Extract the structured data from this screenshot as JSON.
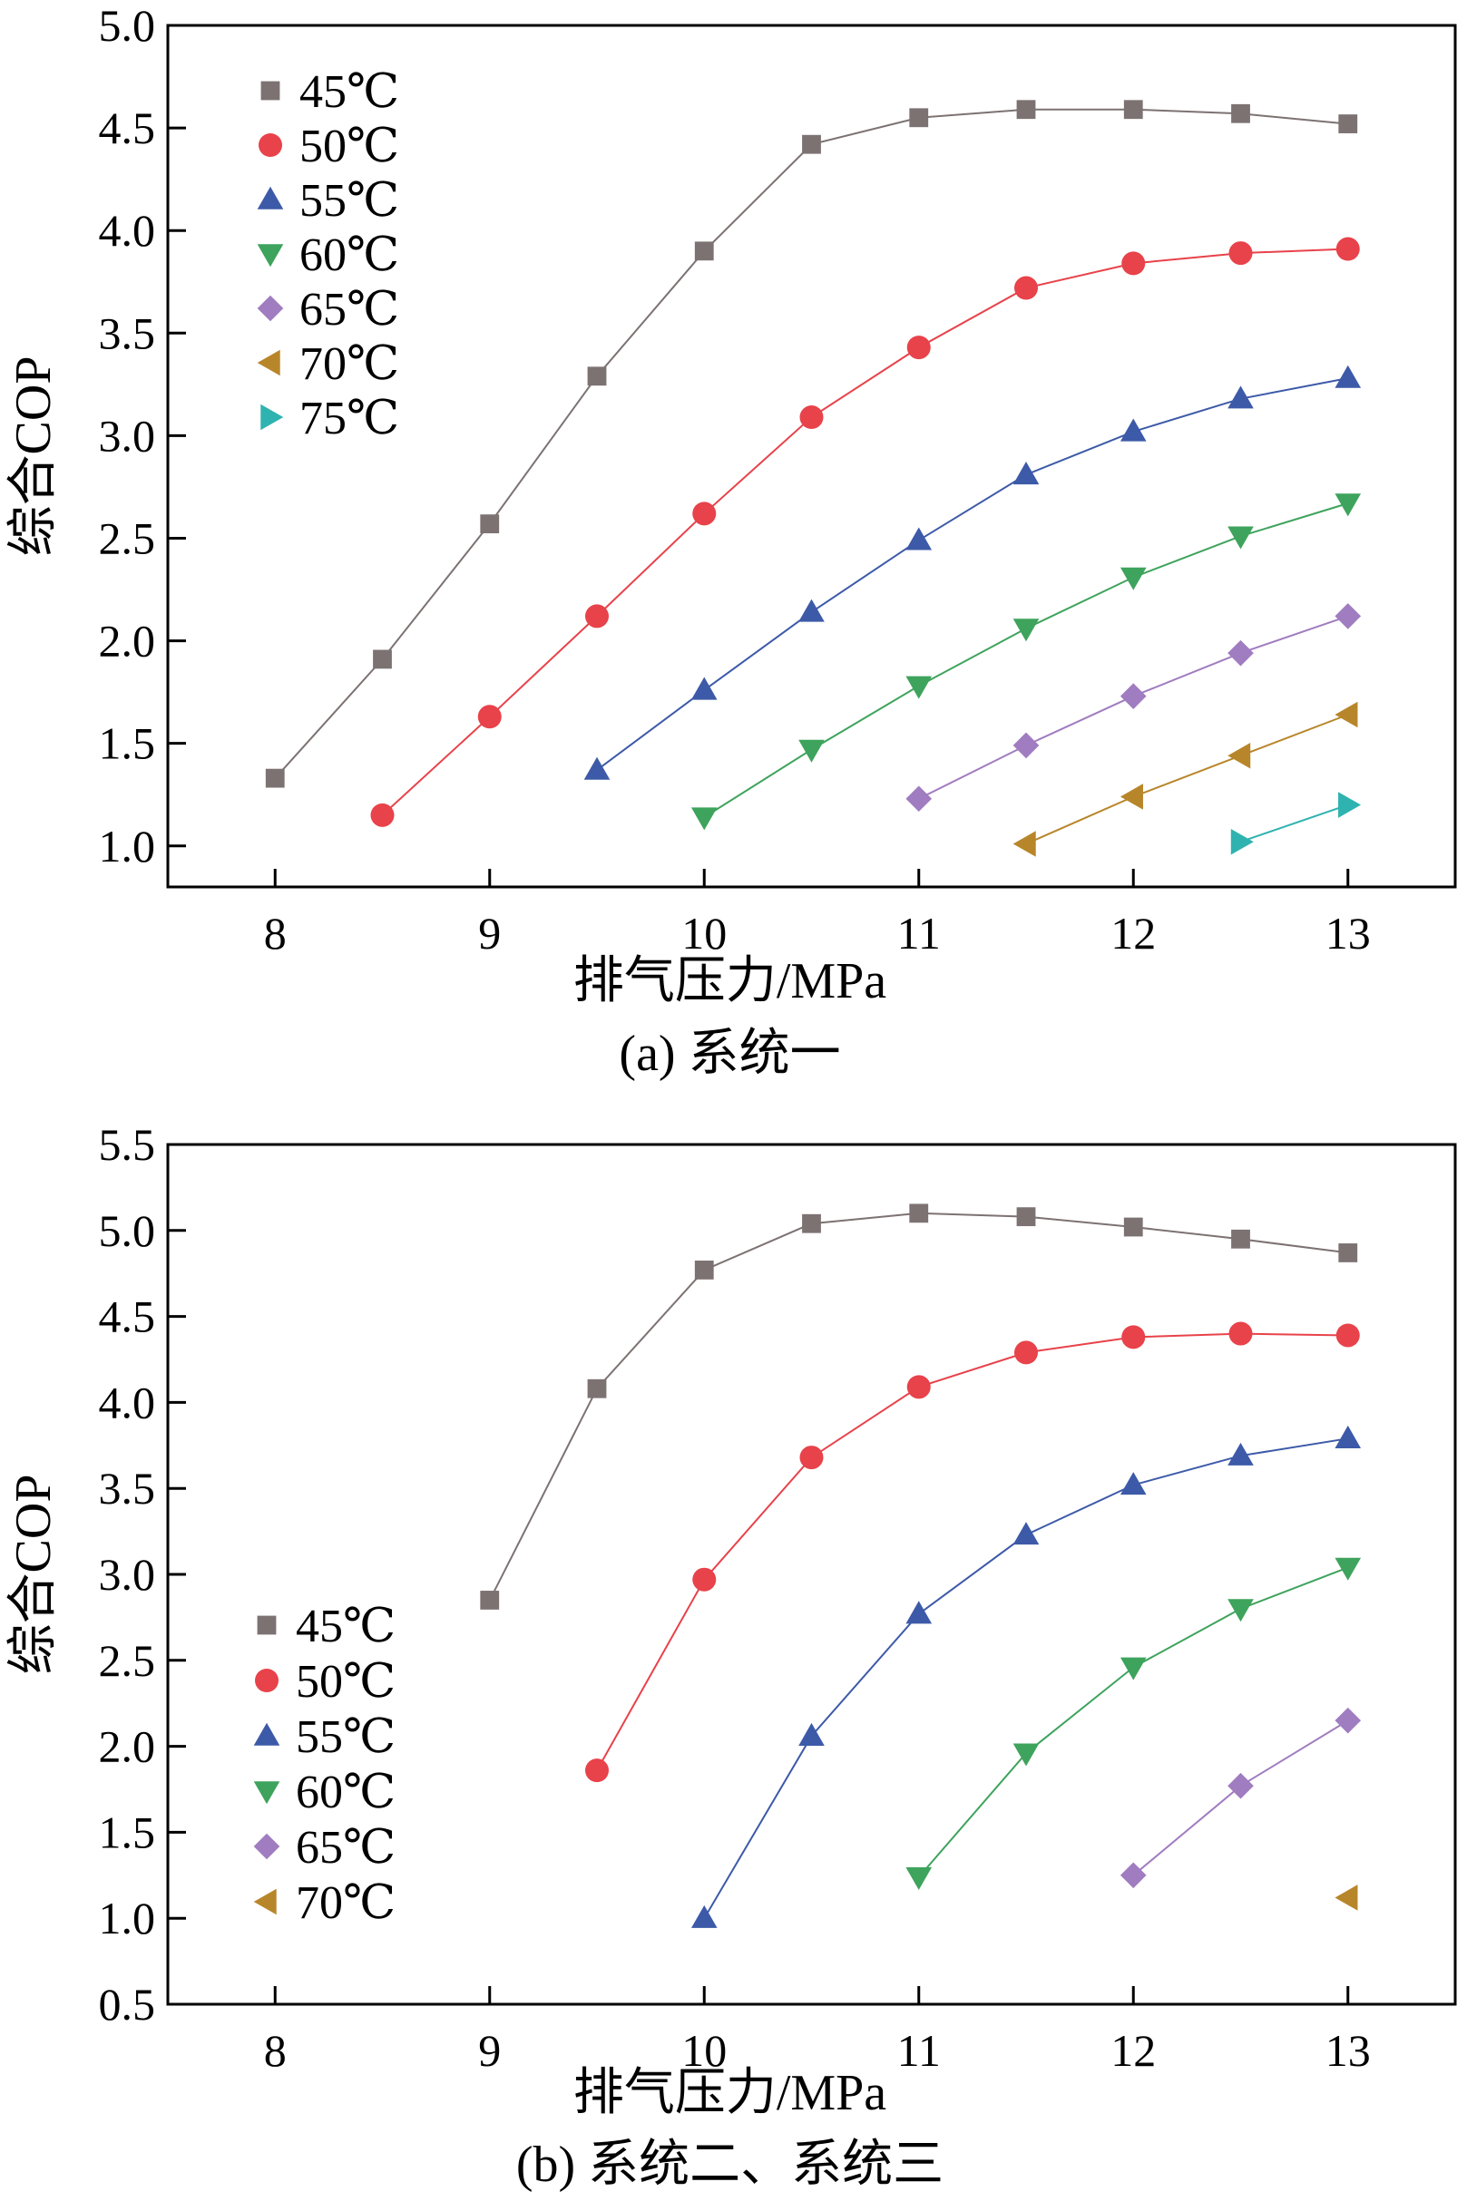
{
  "chart_data": [
    {
      "type": "line",
      "caption": "(a) 系统一",
      "xlabel": "排气压力/MPa",
      "ylabel": "综合COP",
      "xlim": [
        7.5,
        13.5
      ],
      "ylim": [
        0.8,
        5.0
      ],
      "xticks": [
        8,
        9,
        10,
        11,
        12,
        13
      ],
      "yticks": [
        1.0,
        1.5,
        2.0,
        2.5,
        3.0,
        3.5,
        4.0,
        4.5,
        5.0
      ],
      "grid": false,
      "legend_position": "top-left",
      "series": [
        {
          "name": "45℃",
          "marker": "square",
          "color": "#7d7272",
          "x": [
            8,
            8.5,
            9,
            9.5,
            10,
            10.5,
            11,
            11.5,
            12,
            12.5,
            13
          ],
          "y": [
            1.33,
            1.91,
            2.57,
            3.29,
            3.9,
            4.42,
            4.55,
            4.59,
            4.59,
            4.57,
            4.52
          ]
        },
        {
          "name": "50℃",
          "marker": "circle",
          "color": "#e8424a",
          "x": [
            8.5,
            9,
            9.5,
            10,
            10.5,
            11,
            11.5,
            12,
            12.5,
            13
          ],
          "y": [
            1.15,
            1.63,
            2.12,
            2.62,
            3.09,
            3.43,
            3.72,
            3.84,
            3.89,
            3.91
          ]
        },
        {
          "name": "55℃",
          "marker": "triangle-up",
          "color": "#3d5aa8",
          "x": [
            9.5,
            10,
            10.5,
            11,
            11.5,
            12,
            12.5,
            13
          ],
          "y": [
            1.37,
            1.76,
            2.14,
            2.49,
            2.81,
            3.02,
            3.18,
            3.28
          ]
        },
        {
          "name": "60℃",
          "marker": "triangle-down",
          "color": "#3ea35c",
          "x": [
            10,
            10.5,
            11,
            11.5,
            12,
            12.5,
            13
          ],
          "y": [
            1.14,
            1.47,
            1.78,
            2.06,
            2.31,
            2.51,
            2.67
          ]
        },
        {
          "name": "65℃",
          "marker": "diamond",
          "color": "#a07cc0",
          "x": [
            11,
            11.5,
            12,
            12.5,
            13
          ],
          "y": [
            1.23,
            1.49,
            1.73,
            1.94,
            2.12
          ]
        },
        {
          "name": "70℃",
          "marker": "triangle-left",
          "color": "#b8862a",
          "x": [
            11.5,
            12,
            12.5,
            13
          ],
          "y": [
            1.01,
            1.24,
            1.44,
            1.64
          ]
        },
        {
          "name": "75℃",
          "marker": "triangle-right",
          "color": "#2fb3b0",
          "x": [
            12.5,
            13
          ],
          "y": [
            1.02,
            1.2
          ]
        }
      ]
    },
    {
      "type": "line",
      "caption": "(b) 系统二、系统三",
      "xlabel": "排气压力/MPa",
      "ylabel": "综合COP",
      "xlim": [
        7.5,
        13.5
      ],
      "ylim": [
        0.5,
        5.5
      ],
      "xticks": [
        8,
        9,
        10,
        11,
        12,
        13
      ],
      "yticks": [
        0.5,
        1.0,
        1.5,
        2.0,
        2.5,
        3.0,
        3.5,
        4.0,
        4.5,
        5.0,
        5.5
      ],
      "grid": false,
      "legend_position": "bottom-left",
      "series": [
        {
          "name": "45℃",
          "marker": "square",
          "color": "#7d7272",
          "x": [
            9,
            9.5,
            10,
            10.5,
            11,
            11.5,
            12,
            12.5,
            13
          ],
          "y": [
            2.85,
            4.08,
            4.77,
            5.04,
            5.1,
            5.08,
            5.02,
            4.95,
            4.87
          ]
        },
        {
          "name": "50℃",
          "marker": "circle",
          "color": "#e8424a",
          "x": [
            9.5,
            10,
            10.5,
            11,
            11.5,
            12,
            12.5,
            13
          ],
          "y": [
            1.86,
            2.97,
            3.68,
            4.09,
            4.29,
            4.38,
            4.4,
            4.39
          ]
        },
        {
          "name": "55℃",
          "marker": "triangle-up",
          "color": "#3d5aa8",
          "x": [
            10,
            10.5,
            11,
            11.5,
            12,
            12.5,
            13
          ],
          "y": [
            1.0,
            2.06,
            2.77,
            3.23,
            3.52,
            3.69,
            3.79
          ]
        },
        {
          "name": "60℃",
          "marker": "triangle-down",
          "color": "#3ea35c",
          "x": [
            11,
            11.5,
            12,
            12.5,
            13
          ],
          "y": [
            1.24,
            1.96,
            2.46,
            2.8,
            3.04
          ]
        },
        {
          "name": "65℃",
          "marker": "diamond",
          "color": "#a07cc0",
          "x": [
            12,
            12.5,
            13
          ],
          "y": [
            1.25,
            1.77,
            2.15
          ]
        },
        {
          "name": "70℃",
          "marker": "triangle-left",
          "color": "#b8862a",
          "x": [
            13
          ],
          "y": [
            1.12
          ]
        }
      ]
    }
  ]
}
